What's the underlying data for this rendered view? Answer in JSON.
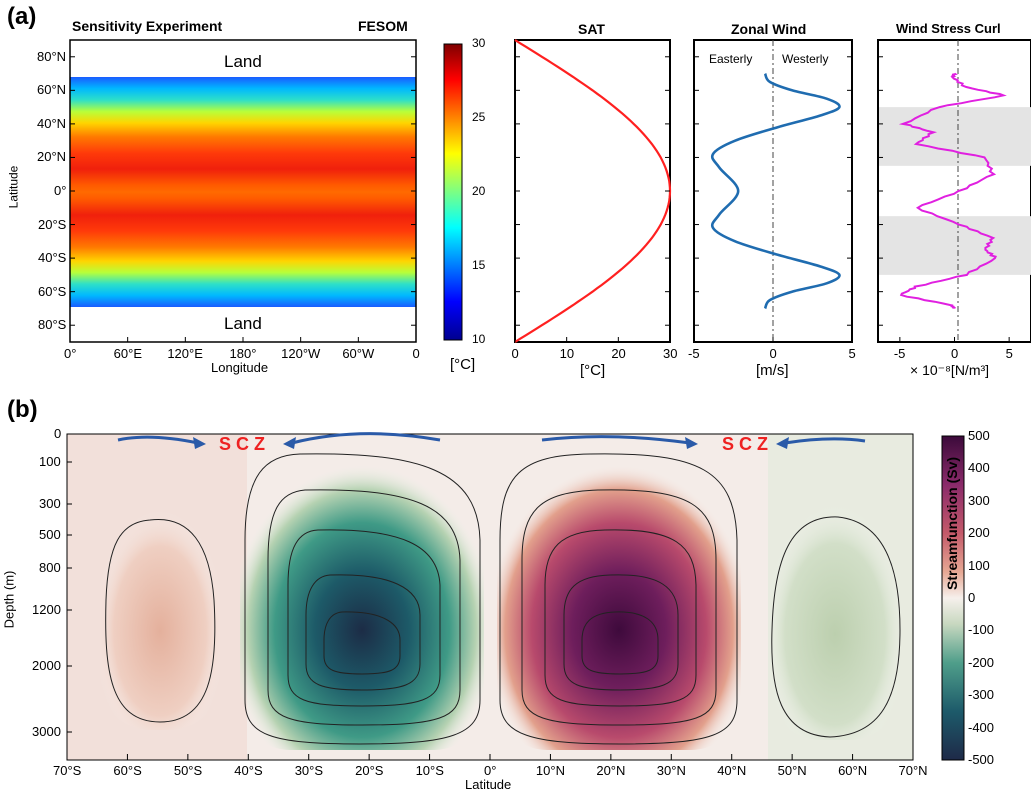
{
  "panel_a": {
    "letter": "(a)",
    "map": {
      "title_left": "Sensitivity Experiment",
      "title_right": "FESOM",
      "land_top": "Land",
      "land_bottom": "Land",
      "ylabel": "Latitude",
      "xlabel": "Longitude",
      "yticks": [
        "80°N",
        "60°N",
        "40°N",
        "20°N",
        "0°",
        "20°S",
        "40°S",
        "60°S",
        "80°S"
      ],
      "xticks": [
        "0°",
        "60°E",
        "120°E",
        "180°",
        "120°W",
        "60°W",
        "0"
      ],
      "colorbar_ticks": [
        "30",
        "25",
        "20",
        "15",
        "10"
      ],
      "colorbar_unit": "[°C]"
    },
    "sat": {
      "title": "SAT",
      "xticks": [
        "0",
        "10",
        "20",
        "30"
      ],
      "xlabel": "[°C]"
    },
    "zonal_wind": {
      "title": "Zonal Wind",
      "left_label": "Easterly",
      "right_label": "Westerly",
      "xticks": [
        "-5",
        "0",
        "5"
      ],
      "xlabel": "[m/s]"
    },
    "wind_stress_curl": {
      "title": "Wind Stress Curl",
      "xticks": [
        "-5",
        "0",
        "5"
      ],
      "xlabel": "× 10⁻⁸[N/m³]"
    }
  },
  "panel_b": {
    "letter": "(b)",
    "ylabel": "Depth (m)",
    "xlabel": "Latitude",
    "yticks": [
      "0",
      "100",
      "300",
      "500",
      "800",
      "1200",
      "2000",
      "3000"
    ],
    "xticks": [
      "70°S",
      "60°S",
      "50°S",
      "40°S",
      "30°S",
      "20°S",
      "10°S",
      "0°",
      "10°N",
      "20°N",
      "30°N",
      "40°N",
      "50°N",
      "60°N",
      "70°N"
    ],
    "scz_left": "S C Z",
    "scz_right": "S C Z",
    "colorbar_label": "Streamfunction (Sv)",
    "colorbar_ticks": [
      "500",
      "400",
      "300",
      "200",
      "100",
      "0",
      "-100",
      "-200",
      "-300",
      "-400",
      "-500"
    ]
  },
  "chart_data": [
    {
      "type": "heatmap",
      "title": "Sensitivity Experiment",
      "xlabel": "Longitude",
      "ylabel": "Latitude",
      "variable_unit": "[°C]",
      "colorbar_range": [
        10,
        30
      ],
      "ocean_latitude_range": [
        -70,
        70
      ],
      "note_values": {
        "land_above_lat": 70,
        "land_below_lat": -70
      },
      "profile_lat": [
        -70,
        -60,
        -50,
        -40,
        -30,
        -20,
        -10,
        0,
        10,
        20,
        30,
        40,
        50,
        60,
        70
      ],
      "profile_temp": [
        10.8,
        14.0,
        18.5,
        23.5,
        26.6,
        28.4,
        29.5,
        30.0,
        29.5,
        28.4,
        26.6,
        23.5,
        18.5,
        14.0,
        10.8
      ]
    },
    {
      "type": "line",
      "title": "SAT",
      "xlabel": "[°C]",
      "xlim": [
        0,
        30
      ],
      "ylim": [
        -90,
        90
      ],
      "series": [
        {
          "x": [
            0,
            10.8,
            17.9,
            23.4,
            27.1,
            29.3,
            30.0,
            29.3,
            27.1,
            23.4,
            17.9,
            10.8,
            0
          ],
          "y": [
            -90,
            -70,
            -55,
            -40,
            -25,
            -10,
            0,
            10,
            25,
            40,
            55,
            70,
            90
          ]
        }
      ]
    },
    {
      "type": "line",
      "title": "Zonal Wind",
      "xlabel": "[m/s]",
      "xlim": [
        -5,
        5
      ],
      "ylim": [
        -90,
        90
      ],
      "series": [
        {
          "x": [
            -0.5,
            -0.2,
            1.2,
            3.4,
            4.2,
            3.0,
            0.3,
            -2.4,
            -3.8,
            -3.4,
            -2.2,
            -3.4,
            -3.8,
            -2.4,
            0.3,
            3.0,
            4.2,
            3.4,
            1.2,
            -0.2,
            -0.5
          ],
          "y": [
            -70,
            -65,
            -60,
            -55,
            -50,
            -45,
            -38,
            -30,
            -22,
            -14,
            0,
            14,
            22,
            30,
            38,
            45,
            50,
            55,
            60,
            65,
            70
          ]
        }
      ]
    },
    {
      "type": "line",
      "title": "Wind Stress Curl",
      "xlabel": "× 10⁻⁸[N/m³]",
      "xlim": [
        -7,
        7
      ],
      "ylim": [
        -90,
        90
      ],
      "series": [
        {
          "x": [
            0,
            -0.3,
            -5.0,
            -3.5,
            1.0,
            3.8,
            2.8,
            3.5,
            0.5,
            -3.5,
            0.5,
            3.5,
            2.8,
            -3.5,
            -2.0,
            -4.6,
            -1.5,
            4.6,
            1.0,
            -0.2,
            0
          ],
          "y": [
            -70,
            -68,
            -62,
            -57,
            -50,
            -40,
            -35,
            -28,
            -20,
            -10,
            0,
            10,
            20,
            28,
            35,
            40,
            50,
            57,
            62,
            68,
            70
          ]
        }
      ],
      "shaded_bands_lat": [
        [
          -50,
          -15
        ],
        [
          15,
          50
        ]
      ]
    },
    {
      "type": "heatmap",
      "title": "",
      "xlabel": "Latitude",
      "ylabel": "Depth (m)",
      "colorbar_label": "Streamfunction (Sv)",
      "colorbar_range": [
        -500,
        500
      ],
      "xlim": [
        -70,
        70
      ],
      "ylim_depth": [
        0,
        3600
      ],
      "cells": [
        {
          "center_lat": -55,
          "peak_value": 150
        },
        {
          "center_lat": -22,
          "peak_value": -480
        },
        {
          "center_lat": 22,
          "peak_value": 480
        },
        {
          "center_lat": 55,
          "peak_value": -150
        }
      ],
      "annotations": [
        "S C Z",
        "S C Z"
      ]
    }
  ]
}
